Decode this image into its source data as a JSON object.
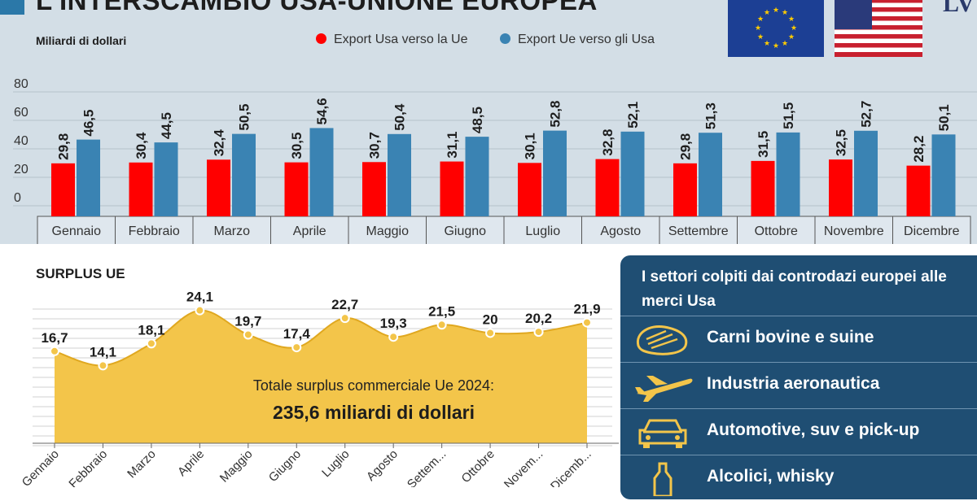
{
  "title": "L'INTERSCAMBIO USA-UNIONE EUROPEA",
  "logo": "LV",
  "colors": {
    "us_export": "#ff0000",
    "eu_export": "#3a83b3",
    "area": "#f3c54a",
    "panel": "#1f4e73"
  },
  "chart_data": [
    {
      "type": "bar",
      "ylabel": "Miliardi di dollari",
      "categories": [
        "Gennaio",
        "Febbraio",
        "Marzo",
        "Aprile",
        "Maggio",
        "Giugno",
        "Luglio",
        "Agosto",
        "Settembre",
        "Ottobre",
        "Novembre",
        "Dicembre"
      ],
      "y_ticks": [
        "0",
        "20",
        "40",
        "60",
        "80"
      ],
      "ylim": [
        0,
        80
      ],
      "legend_position": "top",
      "series": [
        {
          "name": "Export Usa verso la Ue",
          "values": [
            29.8,
            30.4,
            32.4,
            30.5,
            30.7,
            31.1,
            30.1,
            32.8,
            29.8,
            31.5,
            32.5,
            28.2
          ],
          "labels": [
            "29,8",
            "30,4",
            "32,4",
            "30,5",
            "30,7",
            "31,1",
            "30,1",
            "32,8",
            "29,8",
            "31,5",
            "32,5",
            "28,2"
          ]
        },
        {
          "name": "Export Ue verso gli Usa",
          "values": [
            46.5,
            44.5,
            50.5,
            54.6,
            50.4,
            48.5,
            52.8,
            52.1,
            51.3,
            51.5,
            52.7,
            50.1
          ],
          "labels": [
            "46,5",
            "44,5",
            "50,5",
            "54,6",
            "50,4",
            "48,5",
            "52,8",
            "52,1",
            "51,3",
            "51,5",
            "52,7",
            "50,1"
          ]
        }
      ]
    },
    {
      "type": "area",
      "title": "SURPLUS UE",
      "categories": [
        "Gennaio",
        "Febbraio",
        "Marzo",
        "Aprile",
        "Maggio",
        "Giugno",
        "Luglio",
        "Agosto",
        "Settem...",
        "Ottobre",
        "Novem...",
        "Dicemb..."
      ],
      "values": [
        16.7,
        14.1,
        18.1,
        24.1,
        19.7,
        17.4,
        22.7,
        19.3,
        21.5,
        20,
        20.2,
        21.9
      ],
      "labels": [
        "16,7",
        "14,1",
        "18,1",
        "24,1",
        "19,7",
        "17,4",
        "22,7",
        "19,3",
        "21,5",
        "20",
        "20,2",
        "21,9"
      ],
      "ylim": [
        0,
        27
      ],
      "grid": true
    }
  ],
  "total": {
    "label": "Totale surplus commerciale Ue 2024:",
    "value": "235,6 miliardi di dollari"
  },
  "panel": {
    "title": "I settori colpiti dai controdazi europei alle merci Usa",
    "sectors": [
      {
        "label": "Carni bovine e suine",
        "icon": "steak-icon"
      },
      {
        "label": "Industria aeronautica",
        "icon": "airplane-icon"
      },
      {
        "label": "Automotive, suv e pick-up",
        "icon": "car-icon"
      },
      {
        "label": "Alcolici, whisky",
        "icon": "bottle-icon"
      }
    ]
  }
}
